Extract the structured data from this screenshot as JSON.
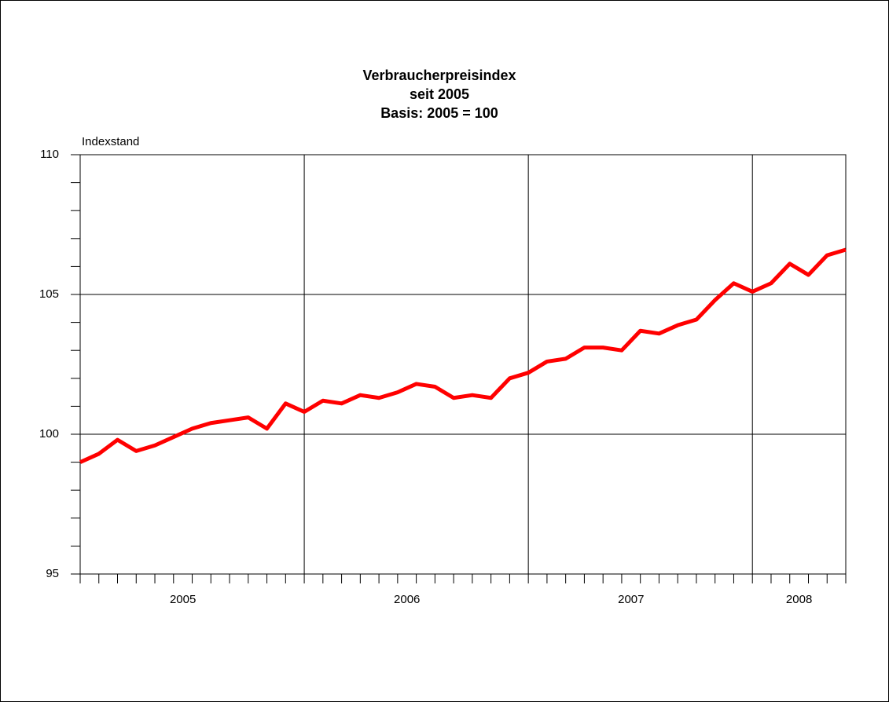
{
  "chart_data": {
    "type": "line",
    "title": "Verbraucherpreisindex",
    "subtitle": [
      "seit 2005",
      "Basis: 2005 = 100"
    ],
    "y_label": "Indexstand",
    "year_labels": [
      "2005",
      "2006",
      "2007",
      "2008"
    ],
    "values": [
      99.0,
      99.3,
      99.8,
      99.4,
      99.6,
      99.9,
      100.2,
      100.4,
      100.5,
      100.6,
      100.2,
      101.1,
      100.8,
      101.2,
      101.1,
      101.4,
      101.3,
      101.5,
      101.8,
      101.7,
      101.3,
      101.4,
      101.3,
      102.0,
      102.2,
      102.6,
      102.7,
      103.1,
      103.1,
      103.0,
      103.7,
      103.6,
      103.9,
      104.1,
      104.8,
      105.4,
      105.1,
      105.4,
      106.1,
      105.7,
      106.4,
      106.6
    ],
    "color": "#ff0000",
    "ylim": [
      95,
      110
    ],
    "yticks": [
      95,
      100,
      105,
      110
    ],
    "y_minor_step": 1,
    "grid": true
  }
}
